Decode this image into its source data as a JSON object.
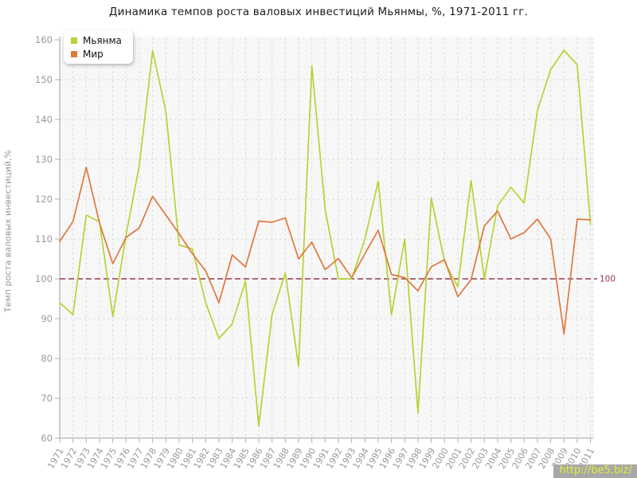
{
  "page": {
    "title": "Динамика темпов роста валовых инвестиций Мьянмы, %, 1971-2011 гг."
  },
  "chart_data": {
    "type": "line",
    "title": "Динамика темпов роста валовых инвестиций Мьянмы, %, 1971-2011 гг.",
    "xlabel": "",
    "ylabel": "Темп роста валовых инвестиций,%",
    "ylim": [
      60,
      160
    ],
    "ytick_step": 10,
    "ytick_labels": [
      "60",
      "70",
      "80",
      "90",
      "100",
      "110",
      "120",
      "130",
      "140",
      "150",
      "160"
    ],
    "grid": true,
    "legend_position": "top-left",
    "x": [
      1971,
      1972,
      1973,
      1974,
      1975,
      1976,
      1977,
      1978,
      1979,
      1980,
      1981,
      1982,
      1983,
      1984,
      1985,
      1986,
      1987,
      1988,
      1989,
      1990,
      1991,
      1992,
      1993,
      1994,
      1995,
      1996,
      1997,
      1998,
      1999,
      2000,
      2001,
      2002,
      2003,
      2004,
      2005,
      2006,
      2007,
      2008,
      2009,
      2010,
      2011
    ],
    "series": [
      {
        "name": "Мьянма",
        "color": "#b5d334",
        "values": [
          94,
          91,
          116,
          114.3,
          90.5,
          111,
          128.5,
          157.3,
          142,
          108.5,
          107.5,
          94,
          85,
          88.7,
          99.5,
          63,
          91,
          101.5,
          78,
          153.5,
          117.5,
          100,
          100,
          110,
          124.5,
          91,
          110,
          66.3,
          120.3,
          104.3,
          98,
          124.7,
          100,
          118.3,
          123,
          119,
          142.3,
          152.5,
          157.4,
          153.7,
          113.7
        ]
      },
      {
        "name": "Мир",
        "color": "#e0783c",
        "values": [
          109.4,
          114.4,
          128,
          114,
          103.8,
          110.4,
          112.8,
          120.7,
          116,
          111.3,
          106.3,
          102,
          94,
          106,
          103,
          114.5,
          114.2,
          115.3,
          105,
          109.2,
          102.3,
          105.1,
          100.3,
          106.3,
          112.2,
          101.1,
          100.3,
          97,
          103,
          104.8,
          95.5,
          99.8,
          113.3,
          117,
          110,
          111.6,
          115,
          110,
          86.2,
          115,
          114.8
        ]
      }
    ],
    "threshold": {
      "value": 100,
      "label": "100",
      "color": "#993a4a"
    },
    "colors": {
      "plot_bg": "#f7f7f7",
      "grid": "#dcdcdc",
      "axis": "#b0b0b0",
      "tick_text": "#999999"
    }
  },
  "watermark": {
    "text": "http://be5.biz/",
    "bg": "#a8a8a8",
    "fg": "#e3ec33"
  }
}
